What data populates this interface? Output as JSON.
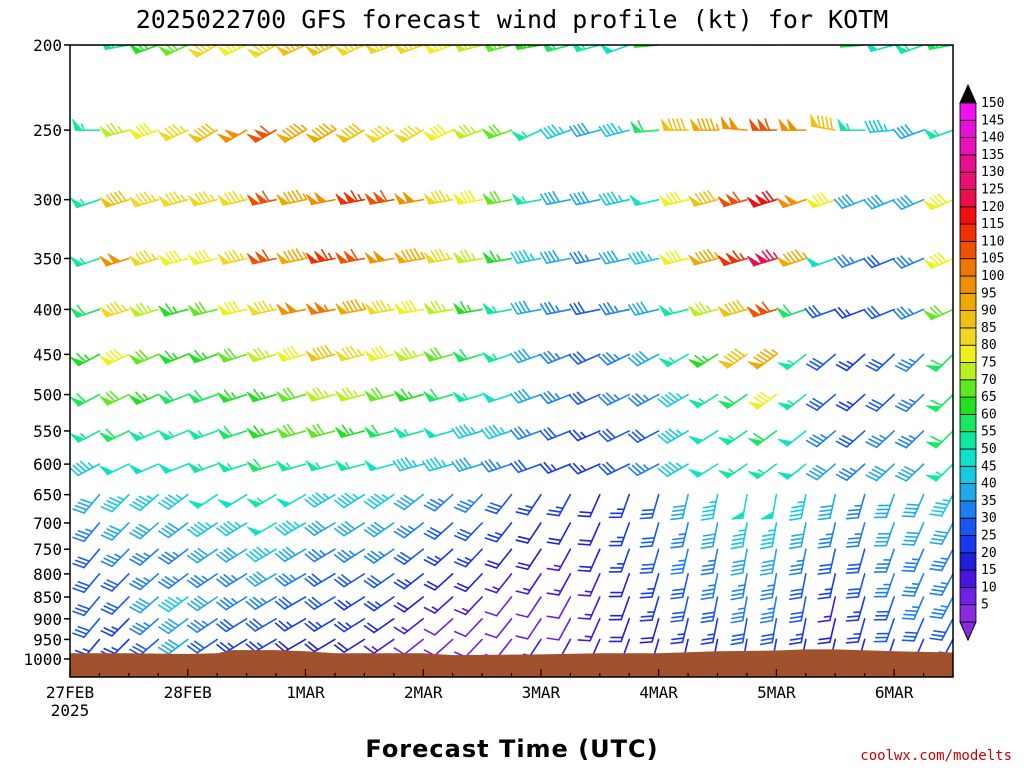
{
  "chart_data": {
    "type": "wind-barb-profile",
    "title": "2025022700 GFS forecast wind profile (kt) for KOTM",
    "xlabel": "Forecast Time (UTC)",
    "ylabel": "",
    "credit": "coolwx.com/modelts",
    "y_levels_mb": [
      200,
      250,
      300,
      350,
      400,
      450,
      500,
      550,
      600,
      650,
      700,
      750,
      800,
      850,
      900,
      950,
      1000
    ],
    "y_range_mb": [
      200,
      1000
    ],
    "x_ticks": [
      {
        "label": "27FEB",
        "sub": "2025",
        "hours": 0
      },
      {
        "label": "28FEB",
        "sub": "",
        "hours": 24
      },
      {
        "label": "1MAR",
        "sub": "",
        "hours": 48
      },
      {
        "label": "2MAR",
        "sub": "",
        "hours": 72
      },
      {
        "label": "3MAR",
        "sub": "",
        "hours": 96
      },
      {
        "label": "4MAR",
        "sub": "",
        "hours": 120
      },
      {
        "label": "5MAR",
        "sub": "",
        "hours": 144
      },
      {
        "label": "6MAR",
        "sub": "",
        "hours": 168
      }
    ],
    "x_range_hours": [
      0,
      180
    ],
    "colorbar_kt": [
      5,
      10,
      15,
      20,
      25,
      30,
      35,
      40,
      45,
      50,
      55,
      60,
      65,
      70,
      75,
      80,
      85,
      90,
      95,
      100,
      105,
      110,
      115,
      120,
      125,
      130,
      135,
      140,
      145,
      150
    ],
    "colorbar_colors": [
      "#8a2be2",
      "#7020e6",
      "#4a14e0",
      "#2020d8",
      "#1838f0",
      "#1858f0",
      "#1e80f0",
      "#20a8e8",
      "#18c8e0",
      "#10e0c8",
      "#10e8a0",
      "#18e860",
      "#20e020",
      "#60e820",
      "#b8f020",
      "#f0f020",
      "#f0d820",
      "#f0c010",
      "#f0a800",
      "#f09000",
      "#f07800",
      "#f05000",
      "#f03000",
      "#f01010",
      "#e8104a",
      "#e81070",
      "#e81090",
      "#e810b8",
      "#e810d8",
      "#f010f0"
    ],
    "ground_color": "#a0522d",
    "terrain_mb": [
      {
        "h": 0,
        "p": 985
      },
      {
        "h": 12,
        "p": 985
      },
      {
        "h": 24,
        "p": 987
      },
      {
        "h": 30,
        "p": 985
      },
      {
        "h": 33,
        "p": 977
      },
      {
        "h": 42,
        "p": 977
      },
      {
        "h": 48,
        "p": 980
      },
      {
        "h": 54,
        "p": 985
      },
      {
        "h": 72,
        "p": 985
      },
      {
        "h": 78,
        "p": 990
      },
      {
        "h": 96,
        "p": 988
      },
      {
        "h": 108,
        "p": 985
      },
      {
        "h": 120,
        "p": 985
      },
      {
        "h": 132,
        "p": 980
      },
      {
        "h": 144,
        "p": 978
      },
      {
        "h": 150,
        "p": 975
      },
      {
        "h": 156,
        "p": 975
      },
      {
        "h": 168,
        "p": 980
      },
      {
        "h": 180,
        "p": 983
      }
    ],
    "sample_hours": [
      0,
      6,
      12,
      18,
      24,
      30,
      36,
      42,
      48,
      54,
      60,
      66,
      72,
      78,
      84,
      90,
      96,
      102,
      108,
      114,
      120,
      126,
      132,
      138,
      144,
      150,
      156,
      162,
      168,
      174,
      180
    ],
    "rows": [
      {
        "mb": 200,
        "speed_kt": [
          45,
          60,
          55,
          65,
          70,
          85,
          80,
          85,
          90,
          90,
          85,
          85,
          85,
          80,
          75,
          70,
          65,
          60,
          55,
          50,
          65,
          85,
          90,
          95,
          100,
          90,
          85,
          60,
          50,
          55,
          60
        ],
        "dir_deg": [
          280,
          270,
          260,
          250,
          245,
          240,
          245,
          240,
          245,
          245,
          245,
          250,
          250,
          250,
          255,
          255,
          260,
          255,
          255,
          250,
          265,
          270,
          270,
          275,
          270,
          270,
          280,
          265,
          255,
          250,
          260
        ]
      },
      {
        "mb": 250,
        "speed_kt": [
          50,
          55,
          75,
          80,
          85,
          90,
          100,
          110,
          95,
          95,
          90,
          85,
          85,
          80,
          75,
          70,
          55,
          45,
          40,
          45,
          60,
          90,
          95,
          100,
          110,
          100,
          90,
          55,
          45,
          40,
          55
        ],
        "dir_deg": [
          275,
          270,
          255,
          250,
          245,
          240,
          240,
          240,
          240,
          240,
          240,
          240,
          240,
          245,
          250,
          250,
          245,
          250,
          255,
          255,
          265,
          270,
          270,
          275,
          270,
          270,
          280,
          270,
          265,
          250,
          250
        ]
      },
      {
        "mb": 300,
        "speed_kt": [
          55,
          55,
          90,
          85,
          85,
          85,
          85,
          110,
          95,
          100,
          115,
          110,
          100,
          85,
          80,
          70,
          55,
          40,
          40,
          45,
          50,
          80,
          90,
          110,
          120,
          100,
          80,
          40,
          40,
          40,
          80
        ]
      },
      {
        "mb": 350,
        "speed_kt": [
          55,
          55,
          100,
          85,
          80,
          80,
          85,
          110,
          95,
          115,
          110,
          100,
          95,
          85,
          75,
          65,
          45,
          40,
          35,
          40,
          45,
          80,
          95,
          115,
          125,
          95,
          50,
          35,
          30,
          35,
          80
        ]
      },
      {
        "mb": 400,
        "speed_kt": [
          60,
          60,
          85,
          75,
          65,
          70,
          80,
          85,
          100,
          105,
          95,
          85,
          80,
          75,
          65,
          55,
          40,
          35,
          30,
          35,
          40,
          55,
          75,
          90,
          110,
          60,
          30,
          25,
          30,
          35,
          70
        ]
      },
      {
        "mb": 450,
        "speed_kt": [
          60,
          65,
          80,
          70,
          65,
          65,
          70,
          75,
          80,
          90,
          85,
          80,
          75,
          70,
          60,
          55,
          40,
          35,
          30,
          35,
          40,
          55,
          65,
          90,
          95,
          55,
          30,
          25,
          30,
          35,
          60
        ]
      },
      {
        "mb": 500,
        "speed_kt": [
          55,
          60,
          70,
          65,
          60,
          60,
          65,
          65,
          70,
          75,
          75,
          70,
          65,
          60,
          55,
          50,
          40,
          35,
          30,
          35,
          35,
          45,
          55,
          60,
          80,
          55,
          30,
          25,
          30,
          35,
          60
        ]
      },
      {
        "mb": 550,
        "speed_kt": [
          50,
          55,
          60,
          55,
          55,
          55,
          60,
          65,
          70,
          70,
          65,
          60,
          55,
          50,
          45,
          45,
          35,
          30,
          25,
          30,
          30,
          45,
          50,
          55,
          60,
          50,
          35,
          30,
          35,
          35,
          60
        ]
      },
      {
        "mb": 600,
        "speed_kt": [
          45,
          45,
          50,
          50,
          50,
          55,
          55,
          60,
          55,
          55,
          55,
          50,
          45,
          45,
          40,
          35,
          30,
          25,
          25,
          30,
          35,
          45,
          50,
          55,
          55,
          50,
          40,
          35,
          40,
          40,
          55
        ]
      },
      {
        "mb": 650,
        "speed_kt": [
          40,
          40,
          45,
          45,
          45,
          50,
          50,
          55,
          50,
          45,
          45,
          45,
          40,
          35,
          35,
          30,
          25,
          25,
          20,
          25,
          30,
          40,
          45,
          50,
          50,
          45,
          40,
          35,
          40,
          40,
          45
        ]
      },
      {
        "mb": 700,
        "speed_kt": [
          35,
          35,
          40,
          40,
          40,
          45,
          45,
          50,
          45,
          40,
          40,
          40,
          35,
          30,
          30,
          25,
          20,
          20,
          20,
          25,
          30,
          35,
          40,
          45,
          45,
          40,
          35,
          35,
          40,
          40,
          40
        ]
      },
      {
        "mb": 750,
        "speed_kt": [
          30,
          30,
          35,
          35,
          35,
          40,
          40,
          45,
          40,
          35,
          35,
          35,
          30,
          25,
          25,
          20,
          20,
          15,
          20,
          25,
          30,
          35,
          35,
          40,
          40,
          35,
          30,
          30,
          35,
          35,
          35
        ]
      },
      {
        "mb": 800,
        "speed_kt": [
          30,
          30,
          30,
          35,
          35,
          35,
          35,
          40,
          35,
          30,
          30,
          30,
          25,
          20,
          20,
          15,
          15,
          15,
          15,
          20,
          25,
          30,
          35,
          35,
          35,
          30,
          25,
          30,
          35,
          35,
          35
        ]
      },
      {
        "mb": 850,
        "speed_kt": [
          30,
          30,
          30,
          40,
          45,
          40,
          35,
          35,
          30,
          30,
          25,
          25,
          20,
          15,
          15,
          10,
          10,
          10,
          15,
          20,
          25,
          30,
          30,
          35,
          35,
          30,
          15,
          25,
          30,
          35,
          35
        ]
      },
      {
        "mb": 900,
        "speed_kt": [
          30,
          30,
          25,
          35,
          40,
          35,
          30,
          30,
          25,
          25,
          25,
          20,
          15,
          10,
          10,
          10,
          10,
          10,
          15,
          20,
          20,
          25,
          25,
          30,
          30,
          25,
          20,
          25,
          30,
          30,
          30
        ]
      },
      {
        "mb": 950,
        "speed_kt": [
          25,
          25,
          25,
          30,
          40,
          30,
          25,
          25,
          20,
          20,
          20,
          15,
          10,
          10,
          10,
          10,
          15,
          15,
          15,
          15,
          20,
          20,
          20,
          25,
          25,
          20,
          20,
          20,
          25,
          25,
          25
        ]
      },
      {
        "mb": 1000,
        "speed_kt": [
          20,
          20,
          20,
          20,
          25,
          25,
          20,
          20,
          20,
          15,
          15,
          10,
          10,
          10,
          10,
          15,
          15,
          15,
          10,
          10,
          15,
          15,
          15,
          20,
          20,
          20,
          15,
          15,
          20,
          20,
          20
        ]
      }
    ]
  }
}
